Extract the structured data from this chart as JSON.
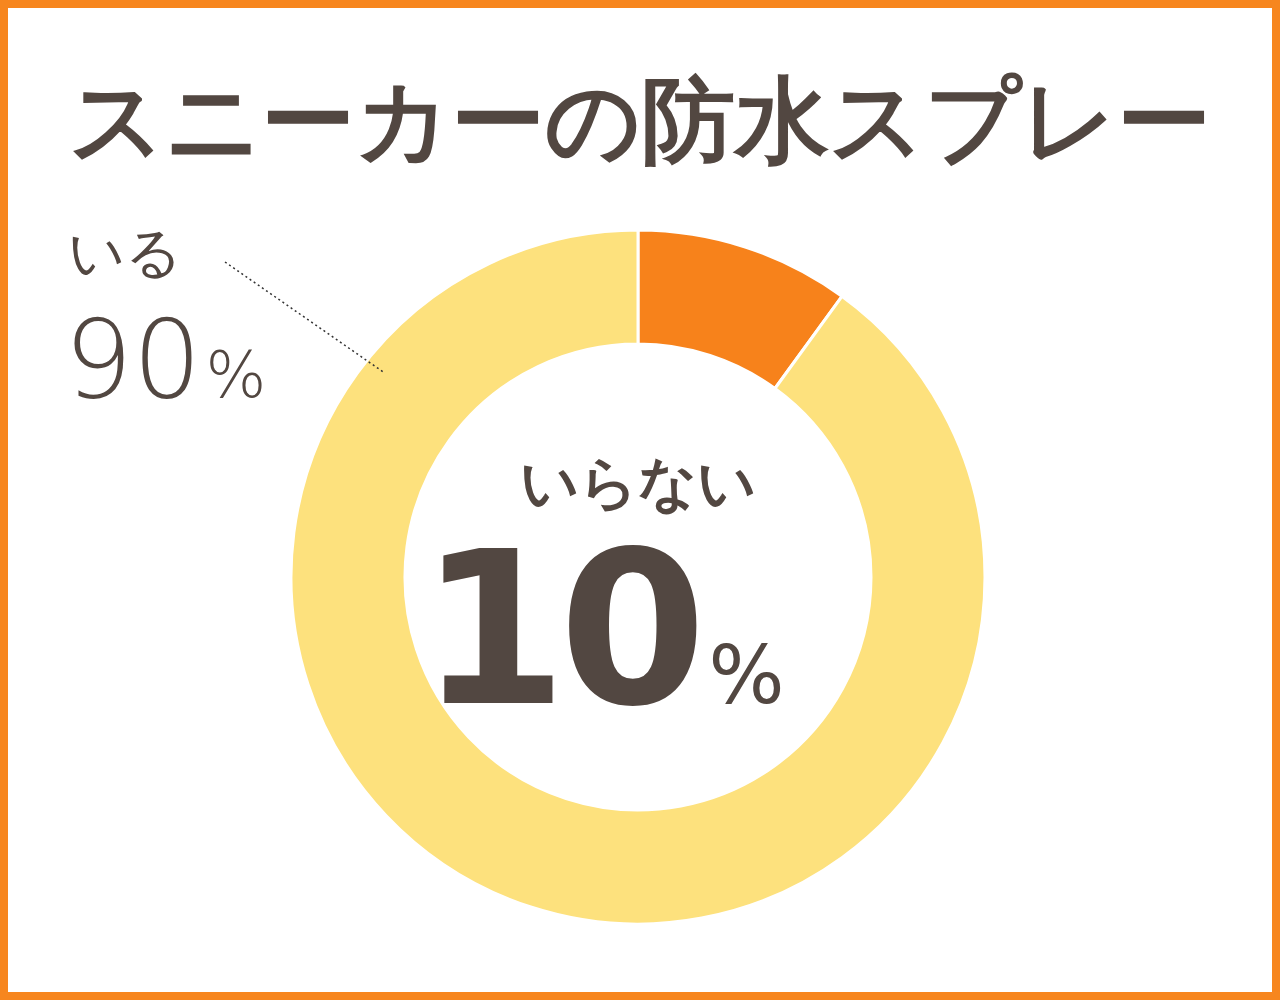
{
  "chart_data": {
    "type": "donut",
    "title": "スニーカーの防水スプレー",
    "categories": [
      "いらない",
      "いる"
    ],
    "values": [
      10,
      90
    ],
    "colors": [
      "#f7821b",
      "#fde17d"
    ],
    "value_labels": [
      "10%",
      "90%"
    ]
  }
}
